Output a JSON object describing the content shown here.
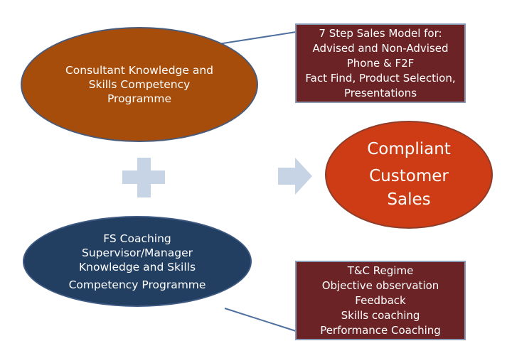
{
  "diagram": {
    "consultant_ellipse": {
      "lines": [
        "Consultant Knowledge and",
        "Skills Competency",
        "Programme"
      ]
    },
    "coaching_ellipse": {
      "lines": [
        "FS Coaching",
        "Supervisor/Manager",
        "Knowledge and Skills",
        "Competency Programme"
      ]
    },
    "result_ellipse": {
      "lines": [
        "Compliant",
        "Customer",
        "Sales"
      ]
    },
    "sales_model_box": {
      "lines": [
        "7 Step Sales Model for:",
        "Advised and Non-Advised",
        "Phone & F2F",
        "Fact Find, Product Selection,",
        "Presentations"
      ]
    },
    "regime_box": {
      "lines": [
        "T&C Regime",
        "Objective observation",
        "Feedback",
        "Skills coaching",
        "Performance Coaching"
      ]
    },
    "colors": {
      "consultant_fill": "#a64d0b",
      "coaching_fill": "#223f62",
      "result_fill": "#cd3c14",
      "box_fill": "#6b2326",
      "plus_and_arrow": "#c6d4e6",
      "connector_line": "#4f6f9e"
    }
  }
}
